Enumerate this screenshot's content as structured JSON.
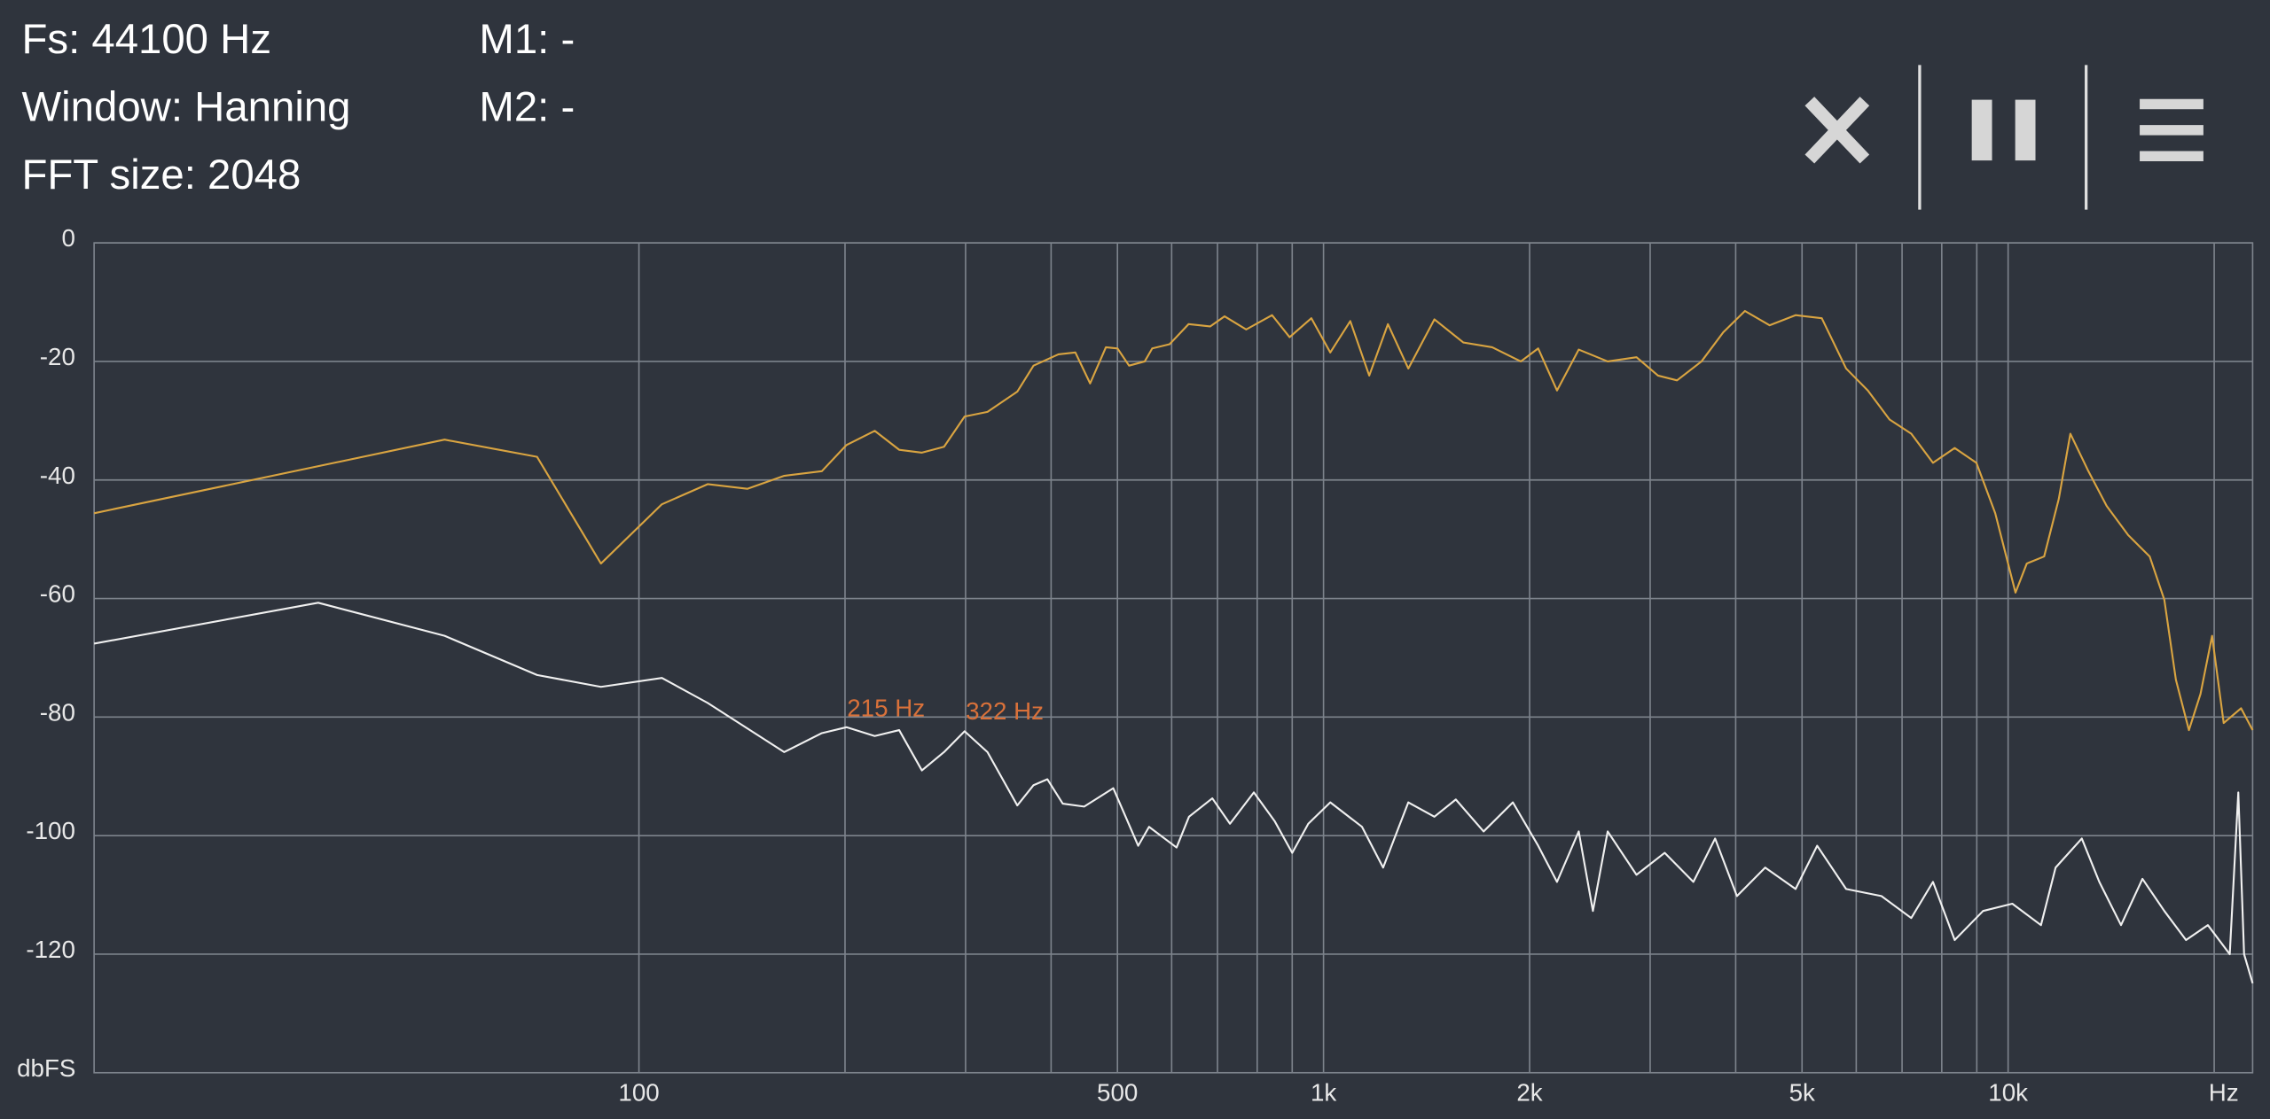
{
  "header": {
    "fs": "Fs: 44100 Hz",
    "window": "Window: Hanning",
    "fft_size": "FFT size: 2048",
    "m1": "M1: -",
    "m2": "M2: -"
  },
  "chart_data": {
    "type": "line",
    "x_log": true,
    "grid": true,
    "xlim": [
      16,
      22760
    ],
    "ylim": [
      -140,
      0
    ],
    "xticks": [
      100,
      500,
      {
        "value": 1000,
        "label": "1k"
      },
      {
        "value": 2000,
        "label": "2k"
      },
      {
        "value": 5000,
        "label": "5k"
      },
      {
        "value": 10000,
        "label": "10k"
      }
    ],
    "xgrid": [
      100,
      200,
      300,
      400,
      500,
      600,
      700,
      800,
      900,
      1000,
      2000,
      3000,
      4000,
      5000,
      6000,
      7000,
      8000,
      9000,
      10000,
      20000
    ],
    "yticks": [
      0,
      -20,
      -40,
      -60,
      -80,
      -100,
      -120
    ],
    "x_label": "Hz",
    "y_label": "dbFS",
    "annotations": [
      {
        "text": "215 Hz"
      },
      {
        "text": "322 Hz"
      }
    ],
    "series": [
      {
        "color": "#d9a441",
        "x": [
          16,
          52,
          71,
          88,
          108,
          126,
          144,
          163,
          185,
          201,
          221,
          240,
          259,
          279,
          299,
          323,
          357,
          377,
          410,
          434,
          456,
          481,
          500,
          520,
          548,
          562,
          596,
          635,
          683,
          717,
          771,
          841,
          892,
          960,
          1023,
          1094,
          1166,
          1242,
          1330,
          1452,
          1600,
          1763,
          1942,
          2059,
          2193,
          2359,
          2600,
          2865,
          3081,
          3284,
          3565,
          3836,
          4126,
          4485,
          4893,
          5343,
          5800,
          6237,
          6711,
          7218,
          7765,
          8354,
          8987,
          9577,
          10250,
          10650,
          11290,
          11860,
          12330,
          13070,
          13930,
          14970,
          16100,
          16910,
          17580,
          18370,
          19100,
          19860,
          20650,
          21890,
          22760
        ],
        "values": [
          -45.6,
          -33.2,
          -36.1,
          -54.1,
          -44.1,
          -40.7,
          -41.5,
          -39.3,
          -38.5,
          -34.1,
          -31.7,
          -34.9,
          -35.4,
          -34.4,
          -29.3,
          -28.5,
          -25.1,
          -20.7,
          -18.8,
          -18.5,
          -23.7,
          -17.6,
          -17.8,
          -20.7,
          -20.0,
          -17.8,
          -17.1,
          -13.7,
          -14.1,
          -12.4,
          -14.6,
          -12.2,
          -15.9,
          -12.7,
          -18.5,
          -13.2,
          -22.4,
          -13.7,
          -21.2,
          -12.9,
          -16.8,
          -17.6,
          -20.0,
          -17.8,
          -24.9,
          -18.0,
          -20.0,
          -19.3,
          -22.4,
          -23.2,
          -20.0,
          -15.1,
          -11.5,
          -13.9,
          -12.2,
          -12.7,
          -21.2,
          -24.9,
          -29.8,
          -32.2,
          -37.1,
          -34.6,
          -37.1,
          -45.6,
          -59.0,
          -54.1,
          -52.9,
          -43.2,
          -32.2,
          -38.3,
          -44.4,
          -49.3,
          -52.9,
          -60.2,
          -73.7,
          -82.2,
          -76.1,
          -66.3,
          -81.0,
          -78.5,
          -82.2
        ]
      },
      {
        "color": "#f0f0f0",
        "x": [
          16,
          34,
          52,
          71,
          88,
          108,
          126,
          163,
          185,
          201,
          221,
          240,
          259,
          279,
          299,
          323,
          357,
          377,
          395,
          416,
          447,
          493,
          536,
          556,
          610,
          636,
          688,
          730,
          791,
          849,
          900,
          950,
          1023,
          1138,
          1222,
          1330,
          1452,
          1560,
          1713,
          1890,
          2059,
          2193,
          2359,
          2475,
          2600,
          2865,
          3150,
          3470,
          3733,
          4017,
          4418,
          4893,
          5260,
          5800,
          6530,
          7218,
          7765,
          8354,
          9190,
          10140,
          11170,
          11730,
          12810,
          13590,
          14620,
          15710,
          16910,
          18190,
          19580,
          21070,
          21690,
          22120,
          22760
        ],
        "values": [
          -67.6,
          -60.7,
          -66.3,
          -72.9,
          -74.9,
          -73.4,
          -77.6,
          -85.9,
          -82.7,
          -81.7,
          -83.2,
          -82.2,
          -89.0,
          -85.9,
          -82.4,
          -85.9,
          -94.9,
          -91.5,
          -90.5,
          -94.6,
          -95.1,
          -92.0,
          -101.7,
          -98.5,
          -102.0,
          -96.8,
          -93.7,
          -98.0,
          -92.7,
          -97.6,
          -102.9,
          -98.0,
          -94.4,
          -98.5,
          -105.4,
          -94.4,
          -96.8,
          -93.9,
          -99.3,
          -94.4,
          -101.7,
          -107.8,
          -99.3,
          -112.7,
          -99.3,
          -106.6,
          -102.9,
          -107.8,
          -100.5,
          -110.2,
          -105.4,
          -109.0,
          -101.7,
          -109.0,
          -110.2,
          -113.9,
          -107.8,
          -117.6,
          -112.7,
          -111.5,
          -115.1,
          -105.4,
          -100.5,
          -107.8,
          -115.1,
          -107.3,
          -112.7,
          -117.6,
          -115.1,
          -120.0,
          -92.7,
          -120.0,
          -124.9
        ]
      }
    ]
  }
}
